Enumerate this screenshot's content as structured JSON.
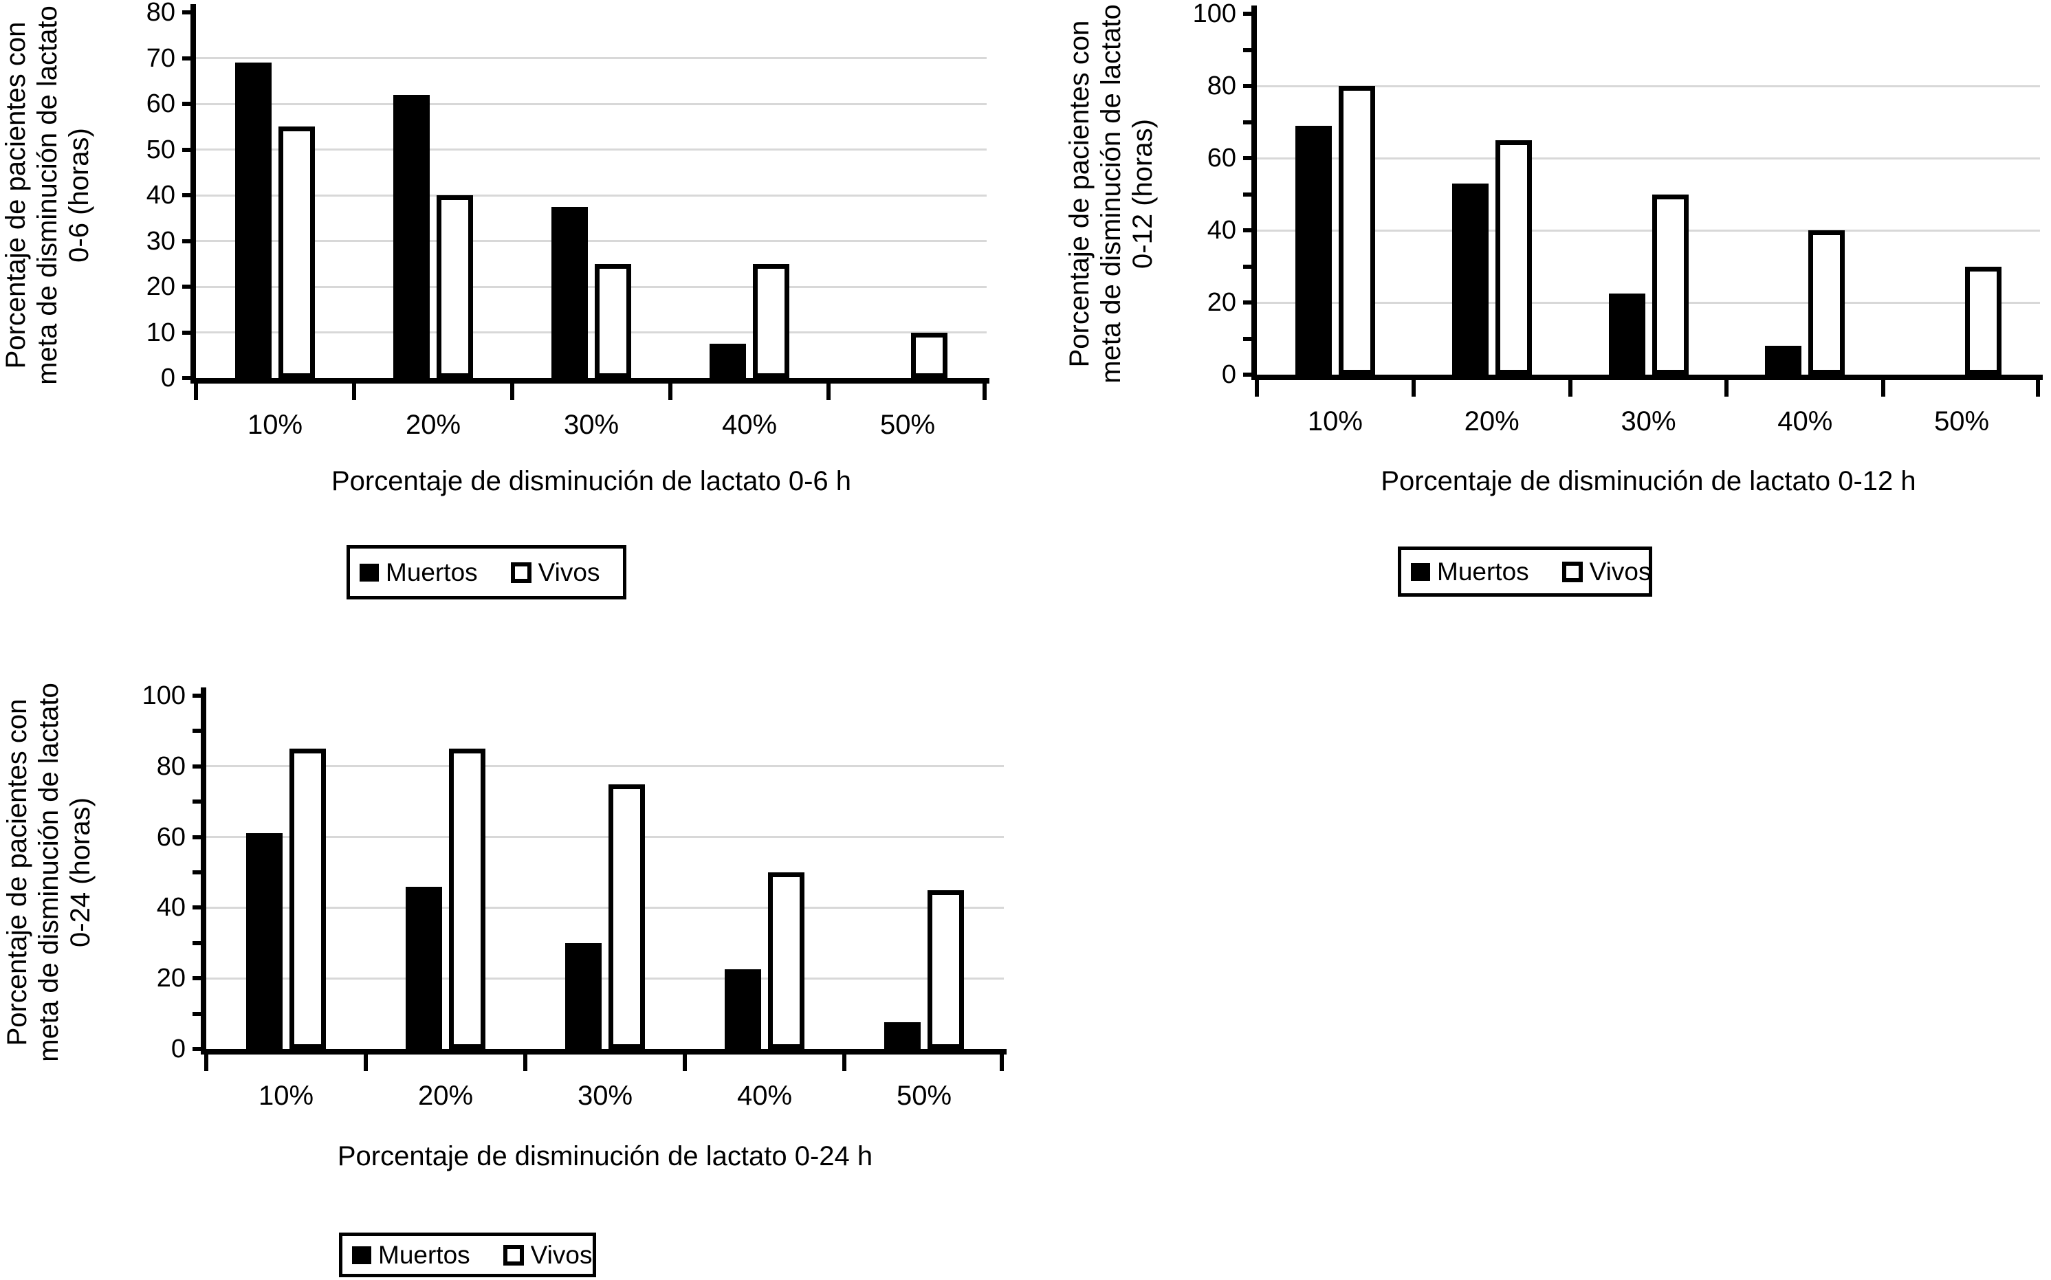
{
  "figure": {
    "background": "#ffffff",
    "text_color": "#000000",
    "grid_color": "#d8d8d8",
    "muertos_fill": "#000000",
    "vivos_fill": "#ffffff",
    "vivos_border": "#000000"
  },
  "chart_data": [
    {
      "type": "bar",
      "categories": [
        "10%",
        "20%",
        "30%",
        "40%",
        "50%"
      ],
      "series": [
        {
          "name": "Muertos",
          "values": [
            69,
            62,
            37.5,
            7.5,
            0
          ]
        },
        {
          "name": "Vivos",
          "values": [
            55,
            40,
            25,
            25,
            10
          ]
        }
      ],
      "xlabel": "Porcentaje de disminución de lactato 0-6 h",
      "ylabel_lines": [
        "Porcentaje de pacientes con",
        "meta de disminución de lactato",
        "0-6 (horas)"
      ],
      "ylim": [
        0,
        80
      ],
      "ytick_labels": [
        "0",
        "10",
        "20",
        "30",
        "40",
        "50",
        "60",
        "70",
        "80"
      ],
      "ytick_minor_step": 10,
      "grid_step": 10,
      "grid": true,
      "legend_position": "below"
    },
    {
      "type": "bar",
      "categories": [
        "10%",
        "20%",
        "30%",
        "40%",
        "50%"
      ],
      "series": [
        {
          "name": "Muertos",
          "values": [
            69,
            53,
            22.5,
            8,
            0
          ]
        },
        {
          "name": "Vivos",
          "values": [
            80,
            65,
            50,
            40,
            30
          ]
        }
      ],
      "xlabel": "Porcentaje de disminución de lactato 0-12 h",
      "ylabel_lines": [
        "Porcentaje de pacientes con",
        "meta de disminución de lactato",
        "0-12 (horas)"
      ],
      "ylim": [
        0,
        100
      ],
      "ytick_labels": [
        "0",
        "20",
        "40",
        "60",
        "80",
        "100"
      ],
      "ytick_minor_step": 10,
      "grid_step": 20,
      "grid": true,
      "legend_position": "below"
    },
    {
      "type": "bar",
      "categories": [
        "10%",
        "20%",
        "30%",
        "40%",
        "50%"
      ],
      "series": [
        {
          "name": "Muertos",
          "values": [
            61,
            46,
            30,
            22.5,
            7.5
          ]
        },
        {
          "name": "Vivos",
          "values": [
            85,
            85,
            75,
            50,
            45
          ]
        }
      ],
      "xlabel": "Porcentaje de disminución de lactato 0-24 h",
      "ylabel_lines": [
        "Porcentaje de pacientes con",
        "meta de disminución de lactato",
        "0-24 (horas)"
      ],
      "ylim": [
        0,
        100
      ],
      "ytick_labels": [
        "0",
        "20",
        "40",
        "60",
        "80",
        "100"
      ],
      "ytick_minor_step": 10,
      "grid_step": 20,
      "grid": true,
      "legend_position": "below"
    }
  ]
}
